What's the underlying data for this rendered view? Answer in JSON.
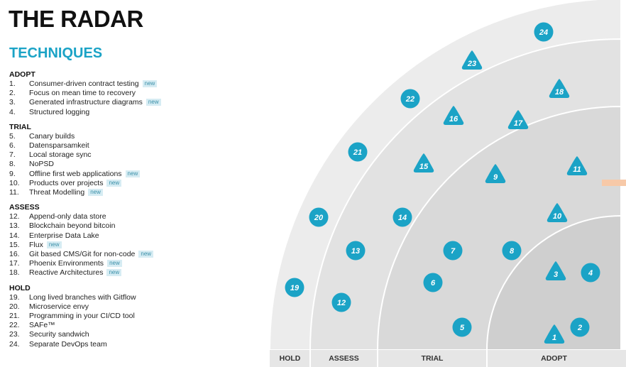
{
  "title": "THE RADAR",
  "quadrant": "TECHNIQUES",
  "colors": {
    "accent": "#1ba3c6",
    "badge_bg": "#d6ecf3",
    "blip": "#1ba3c6"
  },
  "sections": [
    {
      "heading": "ADOPT",
      "items": [
        {
          "num": "1.",
          "label": "Consumer-driven contract testing",
          "badge": "new"
        },
        {
          "num": "2.",
          "label": "Focus on mean time to recovery",
          "badge": ""
        },
        {
          "num": "3.",
          "label": "Generated infrastructure diagrams",
          "badge": "new"
        },
        {
          "num": "4.",
          "label": "Structured logging",
          "badge": ""
        }
      ]
    },
    {
      "heading": "TRIAL",
      "items": [
        {
          "num": "5.",
          "label": "Canary builds",
          "badge": ""
        },
        {
          "num": "6.",
          "label": "Datensparsamkeit",
          "badge": ""
        },
        {
          "num": "7.",
          "label": "Local storage sync",
          "badge": ""
        },
        {
          "num": "8.",
          "label": "NoPSD",
          "badge": ""
        },
        {
          "num": "9.",
          "label": "Offline first web applications",
          "badge": "new"
        },
        {
          "num": "10.",
          "label": "Products over projects",
          "badge": "new"
        },
        {
          "num": "11.",
          "label": "Threat Modelling",
          "badge": "new"
        }
      ]
    },
    {
      "heading": "ASSESS",
      "items": [
        {
          "num": "12.",
          "label": "Append-only data store",
          "badge": ""
        },
        {
          "num": "13.",
          "label": "Blockchain beyond bitcoin",
          "badge": ""
        },
        {
          "num": "14.",
          "label": "Enterprise Data Lake",
          "badge": ""
        },
        {
          "num": "15.",
          "label": "Flux",
          "badge": "new"
        },
        {
          "num": "16.",
          "label": "Git based CMS/Git for non-code",
          "badge": "new"
        },
        {
          "num": "17.",
          "label": "Phoenix Environments",
          "badge": "new"
        },
        {
          "num": "18.",
          "label": "Reactive Architectures",
          "badge": "new"
        }
      ]
    },
    {
      "heading": "HOLD",
      "items": [
        {
          "num": "19.",
          "label": "Long lived branches with Gitflow",
          "badge": ""
        },
        {
          "num": "20.",
          "label": "Microservice envy",
          "badge": ""
        },
        {
          "num": "21.",
          "label": "Programming in your CI/CD tool",
          "badge": ""
        },
        {
          "num": "22.",
          "label": "SAFe™",
          "badge": ""
        },
        {
          "num": "23.",
          "label": "Security sandwich",
          "badge": ""
        },
        {
          "num": "24.",
          "label": "Separate DevOps team",
          "badge": ""
        }
      ]
    }
  ],
  "rings": [
    "HOLD",
    "ASSESS",
    "TRIAL",
    "ADOPT"
  ],
  "blips": [
    {
      "id": "1",
      "shape": "triangle",
      "ring": "ADOPT"
    },
    {
      "id": "2",
      "shape": "circle",
      "ring": "ADOPT"
    },
    {
      "id": "3",
      "shape": "triangle",
      "ring": "ADOPT"
    },
    {
      "id": "4",
      "shape": "circle",
      "ring": "ADOPT"
    },
    {
      "id": "5",
      "shape": "circle",
      "ring": "TRIAL"
    },
    {
      "id": "6",
      "shape": "circle",
      "ring": "TRIAL"
    },
    {
      "id": "7",
      "shape": "circle",
      "ring": "TRIAL"
    },
    {
      "id": "8",
      "shape": "circle",
      "ring": "TRIAL"
    },
    {
      "id": "9",
      "shape": "triangle",
      "ring": "TRIAL"
    },
    {
      "id": "10",
      "shape": "triangle",
      "ring": "TRIAL"
    },
    {
      "id": "11",
      "shape": "triangle",
      "ring": "TRIAL"
    },
    {
      "id": "12",
      "shape": "circle",
      "ring": "ASSESS"
    },
    {
      "id": "13",
      "shape": "circle",
      "ring": "ASSESS"
    },
    {
      "id": "14",
      "shape": "circle",
      "ring": "ASSESS"
    },
    {
      "id": "15",
      "shape": "triangle",
      "ring": "ASSESS"
    },
    {
      "id": "16",
      "shape": "triangle",
      "ring": "ASSESS"
    },
    {
      "id": "17",
      "shape": "triangle",
      "ring": "ASSESS"
    },
    {
      "id": "18",
      "shape": "triangle",
      "ring": "ASSESS"
    },
    {
      "id": "19",
      "shape": "circle",
      "ring": "HOLD"
    },
    {
      "id": "20",
      "shape": "circle",
      "ring": "HOLD"
    },
    {
      "id": "21",
      "shape": "circle",
      "ring": "HOLD"
    },
    {
      "id": "22",
      "shape": "circle",
      "ring": "HOLD"
    },
    {
      "id": "23",
      "shape": "triangle",
      "ring": "HOLD"
    },
    {
      "id": "24",
      "shape": "circle",
      "ring": "HOLD"
    }
  ]
}
